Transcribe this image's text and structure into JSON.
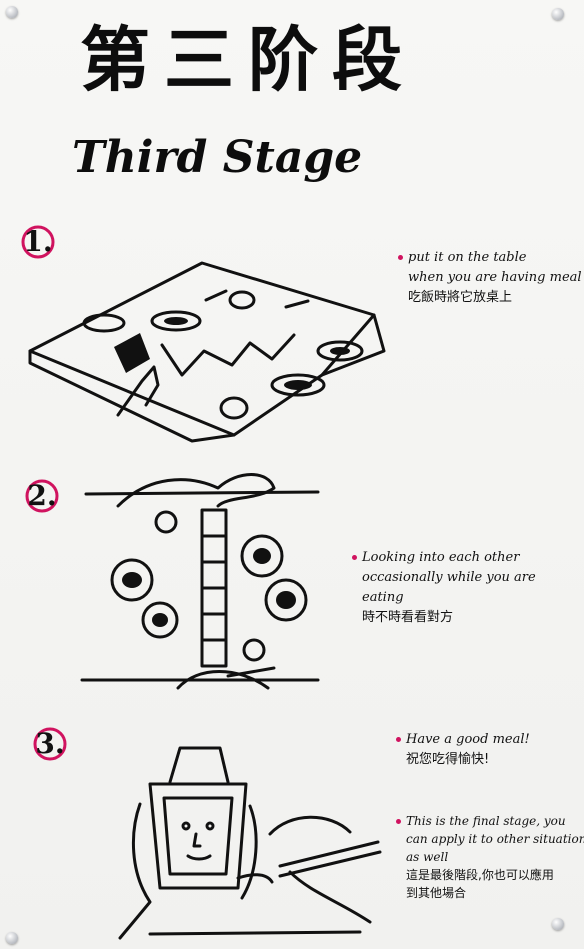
{
  "poster": {
    "title_cn": "第三阶段",
    "title_en": "Third Stage",
    "accent_color": "#d0135f",
    "ink_color": "#111111"
  },
  "steps": [
    {
      "number": "1.",
      "notes": [
        {
          "lines": [
            "put it on the table",
            "when you are having meal"
          ],
          "cn": "吃飯時將它放桌上"
        }
      ]
    },
    {
      "number": "2.",
      "notes": [
        {
          "lines": [
            "Looking into each other",
            "occasionally while you are",
            "eating"
          ],
          "cn": "時不時看看對方"
        }
      ]
    },
    {
      "number": "3.",
      "notes": [
        {
          "lines": [
            "Have a good meal!"
          ],
          "cn": "祝您吃得愉快!"
        },
        {
          "lines": [
            "This is the final stage, you",
            "can apply it to other situations",
            "as well"
          ],
          "cn": "這是最後階段,你也可以應用",
          "cn2": "到其他場合"
        }
      ]
    }
  ]
}
